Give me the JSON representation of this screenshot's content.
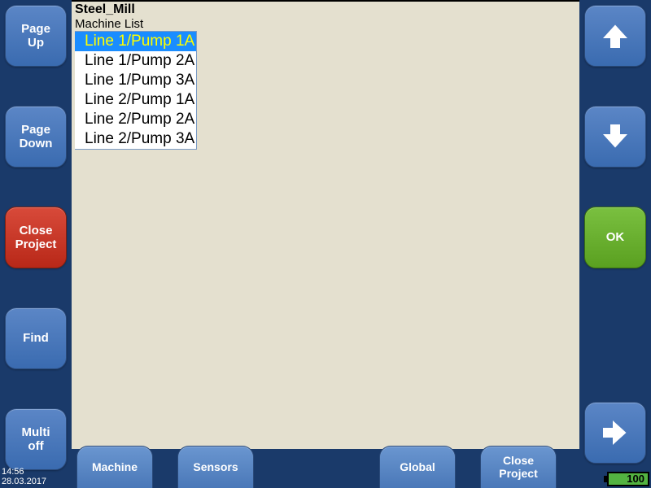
{
  "left_buttons": {
    "page_up": "Page\nUp",
    "page_down": "Page\nDown",
    "close_project": "Close\nProject",
    "find": "Find",
    "multi_off": "Multi\noff"
  },
  "right_buttons": {
    "ok": "OK"
  },
  "main": {
    "title": "Steel_Mill",
    "subtitle": "Machine List",
    "items": [
      {
        "label": "Line 1/Pump 1A",
        "selected": true
      },
      {
        "label": "Line 1/Pump 2A",
        "selected": false
      },
      {
        "label": "Line 1/Pump 3A",
        "selected": false
      },
      {
        "label": "Line 2/Pump 1A",
        "selected": false
      },
      {
        "label": "Line 2/Pump 2A",
        "selected": false
      },
      {
        "label": "Line 2/Pump 3A",
        "selected": false
      }
    ]
  },
  "bottom": {
    "machine": "Machine",
    "sensors": "Sensors",
    "global": "Global",
    "close_project": "Close\nProject"
  },
  "status": {
    "time": "14:56",
    "date": "28.03.2017",
    "battery": "100"
  },
  "colors": {
    "bg": "#1a3a6a",
    "panel": "#e4e0cf",
    "selected_bg": "#1a8dff",
    "selected_fg": "#ffff00"
  }
}
